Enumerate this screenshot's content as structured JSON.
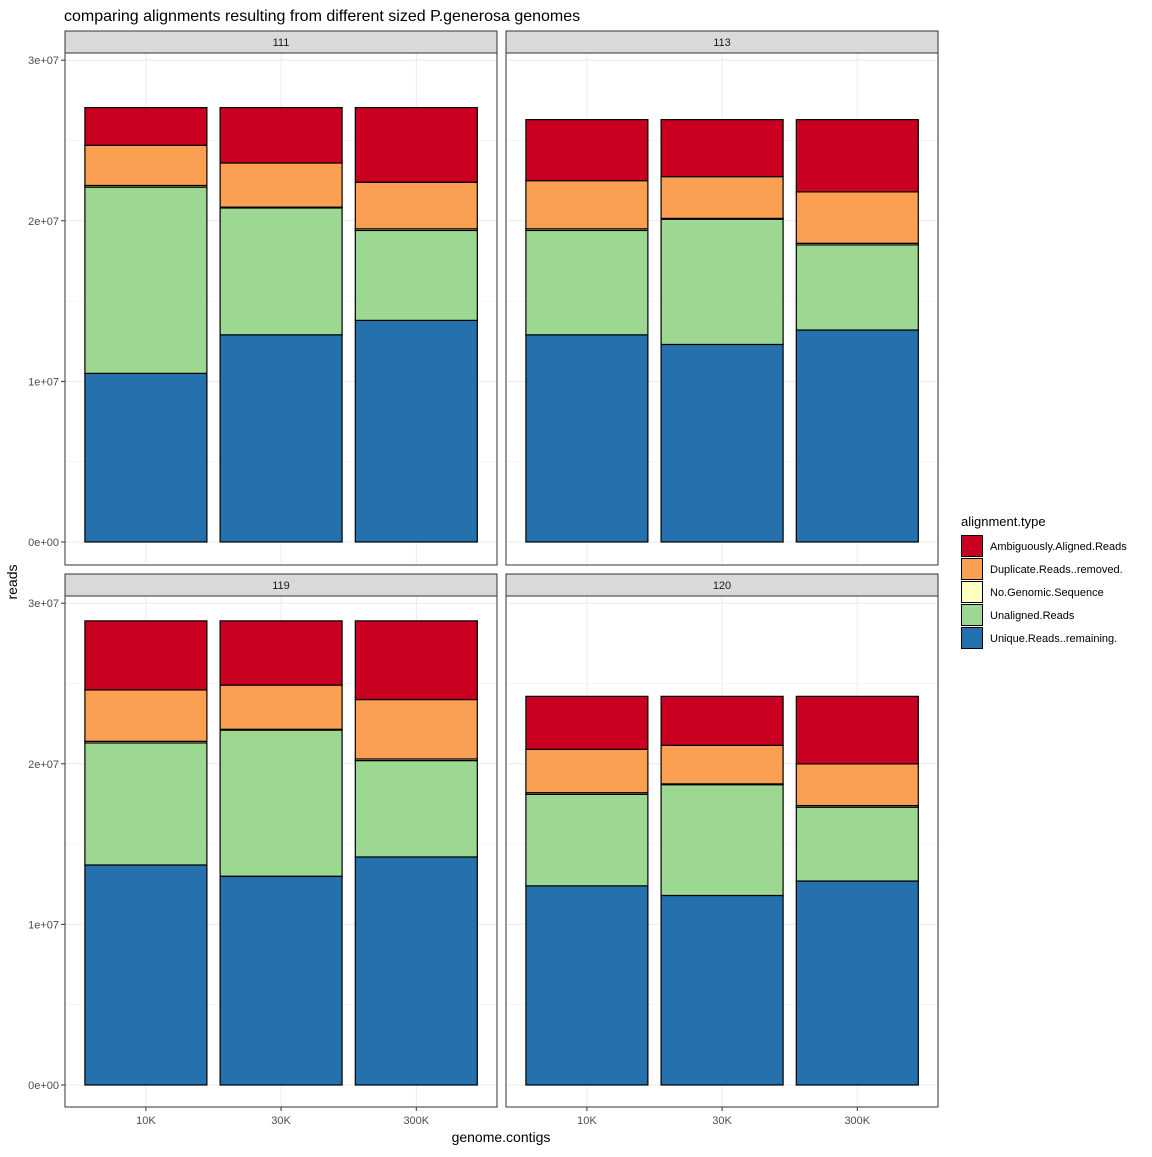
{
  "chart_data": {
    "type": "bar",
    "stacked": true,
    "faceted": true,
    "title": "comparing alignments resulting from different sized P.generosa genomes",
    "xlabel": "genome.contigs",
    "ylabel": "reads",
    "ylim": [
      0,
      30000000
    ],
    "yticks": [
      {
        "value": 0,
        "label": "0e+00"
      },
      {
        "value": 10000000,
        "label": "1e+07"
      },
      {
        "value": 20000000,
        "label": "2e+07"
      },
      {
        "value": 30000000,
        "label": "3e+07"
      }
    ],
    "categories": [
      "10K",
      "30K",
      "300K"
    ],
    "legend": {
      "title": "alignment.type",
      "position": "right",
      "items": [
        {
          "name": "Ambiguously.Aligned.Reads",
          "color": "#ca0020"
        },
        {
          "name": "Duplicate.Reads..removed.",
          "color": "#fba052"
        },
        {
          "name": "No.Genomic.Sequence",
          "color": "#ffffbf"
        },
        {
          "name": "Unaligned.Reads",
          "color": "#9dd893"
        },
        {
          "name": "Unique.Reads..remaining.",
          "color": "#2471ad"
        }
      ]
    },
    "stack_order_bottom_to_top": [
      "Unique.Reads..remaining.",
      "Unaligned.Reads",
      "No.Genomic.Sequence",
      "Duplicate.Reads..removed.",
      "Ambiguously.Aligned.Reads"
    ],
    "panels": [
      {
        "label": "111",
        "series": [
          {
            "name": "Unique.Reads..remaining.",
            "values": [
              10500000,
              12900000,
              13800000
            ]
          },
          {
            "name": "Unaligned.Reads",
            "values": [
              11600000,
              7900000,
              5600000
            ]
          },
          {
            "name": "No.Genomic.Sequence",
            "values": [
              100000,
              50000,
              100000
            ]
          },
          {
            "name": "Duplicate.Reads..removed.",
            "values": [
              2500000,
              2750000,
              2900000
            ]
          },
          {
            "name": "Ambiguously.Aligned.Reads",
            "values": [
              2350000,
              3450000,
              4650000
            ]
          }
        ]
      },
      {
        "label": "113",
        "series": [
          {
            "name": "Unique.Reads..remaining.",
            "values": [
              12900000,
              12300000,
              13200000
            ]
          },
          {
            "name": "Unaligned.Reads",
            "values": [
              6500000,
              7800000,
              5300000
            ]
          },
          {
            "name": "No.Genomic.Sequence",
            "values": [
              100000,
              50000,
              100000
            ]
          },
          {
            "name": "Duplicate.Reads..removed.",
            "values": [
              3000000,
              2600000,
              3200000
            ]
          },
          {
            "name": "Ambiguously.Aligned.Reads",
            "values": [
              3800000,
              3550000,
              4500000
            ]
          }
        ]
      },
      {
        "label": "119",
        "series": [
          {
            "name": "Unique.Reads..remaining.",
            "values": [
              13700000,
              13000000,
              14200000
            ]
          },
          {
            "name": "Unaligned.Reads",
            "values": [
              7600000,
              9100000,
              6000000
            ]
          },
          {
            "name": "No.Genomic.Sequence",
            "values": [
              100000,
              50000,
              100000
            ]
          },
          {
            "name": "Duplicate.Reads..removed.",
            "values": [
              3200000,
              2750000,
              3700000
            ]
          },
          {
            "name": "Ambiguously.Aligned.Reads",
            "values": [
              4300000,
              4000000,
              4900000
            ]
          }
        ]
      },
      {
        "label": "120",
        "series": [
          {
            "name": "Unique.Reads..remaining.",
            "values": [
              12400000,
              11800000,
              12700000
            ]
          },
          {
            "name": "Unaligned.Reads",
            "values": [
              5700000,
              6900000,
              4600000
            ]
          },
          {
            "name": "No.Genomic.Sequence",
            "values": [
              100000,
              50000,
              100000
            ]
          },
          {
            "name": "Duplicate.Reads..removed.",
            "values": [
              2700000,
              2400000,
              2600000
            ]
          },
          {
            "name": "Ambiguously.Aligned.Reads",
            "values": [
              3300000,
              3050000,
              4200000
            ]
          }
        ]
      }
    ]
  }
}
